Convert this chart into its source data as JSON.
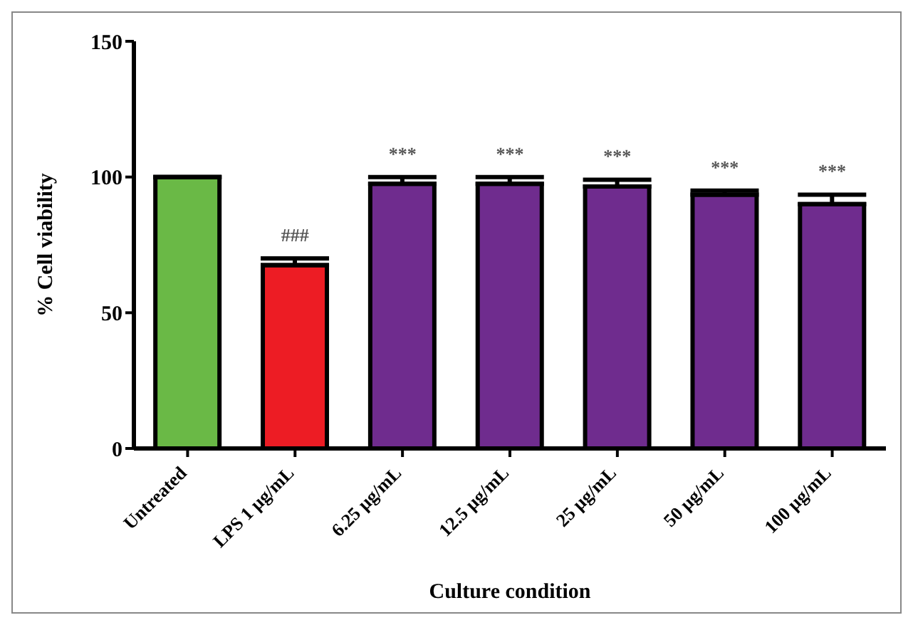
{
  "chart_data": {
    "type": "bar",
    "xlabel": "Culture condition",
    "ylabel": "% Cell viability",
    "categories": [
      "Untreated",
      "LPS 1 µg/mL",
      "6.25 µg/mL",
      "12.5 µg/mL",
      "25 µg/mL",
      "50 µg/mL",
      "100 µg/mL"
    ],
    "values": [
      100,
      67.5,
      97.5,
      97.5,
      96.5,
      93.5,
      90
    ],
    "errors": [
      null,
      2.5,
      2.5,
      2.5,
      2.5,
      1.5,
      3.5
    ],
    "colors": [
      "#6ab946",
      "#ed1c24",
      "#6f2c8e",
      "#6f2c8e",
      "#6f2c8e",
      "#6f2c8e",
      "#6f2c8e"
    ],
    "ylim": [
      0,
      150
    ],
    "yticks": [
      0,
      50,
      100,
      150
    ],
    "grid": false,
    "legend": false,
    "annotations": [
      "###",
      "***",
      "***",
      "***",
      "***",
      "***"
    ]
  }
}
